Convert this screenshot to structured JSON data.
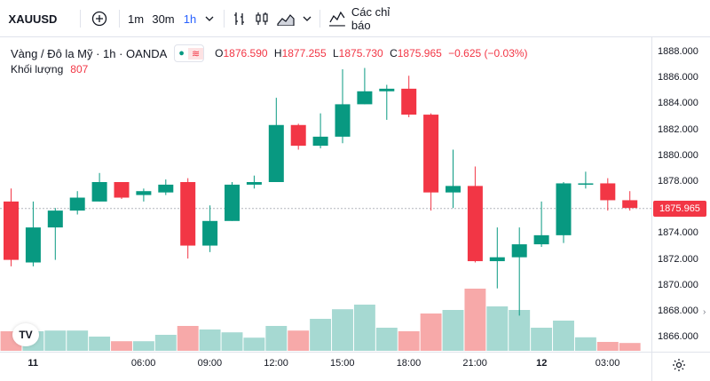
{
  "toolbar": {
    "symbol": "XAUUSD",
    "intervals": [
      "1m",
      "30m",
      "1h"
    ],
    "active_interval": "1h",
    "indicators_label": "Các chỉ báo",
    "icons": [
      "add-symbol-icon",
      "chevron-down-icon",
      "bar-style-icon",
      "candle-style-icon",
      "area-style-icon",
      "indicators-icon"
    ]
  },
  "legend": {
    "title": "Vàng / Đô la Mỹ · 1h · OANDA",
    "open_label": "O",
    "open": "1876.590",
    "high_label": "H",
    "high": "1877.255",
    "low_label": "L",
    "low": "1875.730",
    "close_label": "C",
    "close": "1875.965",
    "change": "−0.625 (−0.03%)",
    "volume_label": "Khối lượng",
    "volume": "807"
  },
  "price_axis": {
    "ticks": [
      "1888.000",
      "1886.000",
      "1884.000",
      "1882.000",
      "1880.000",
      "1878.000",
      "1876.000",
      "1874.000",
      "1872.000",
      "1870.000",
      "1868.000",
      "1866.000"
    ],
    "current_price": "1875.965"
  },
  "time_axis": {
    "ticks": [
      "11",
      "06:00",
      "09:00",
      "12:00",
      "15:00",
      "18:00",
      "21:00",
      "12",
      "03:00"
    ]
  },
  "colors": {
    "up": "#089981",
    "down": "#f23645",
    "vol_up": "#a6d9d2",
    "vol_down": "#f7a9a9",
    "accent": "#2962ff"
  },
  "chart_data": {
    "type": "candlestick",
    "ylim": [
      1865,
      1889.5
    ],
    "candles": [
      {
        "o": 1876.5,
        "h": 1877.5,
        "l": 1871.5,
        "c": 1872.0,
        "vol": 0.55
      },
      {
        "o": 1871.8,
        "h": 1876.5,
        "l": 1871.5,
        "c": 1874.5,
        "vol": 0.55
      },
      {
        "o": 1874.5,
        "h": 1876.0,
        "l": 1872.0,
        "c": 1875.8,
        "vol": 0.57
      },
      {
        "o": 1875.8,
        "h": 1877.3,
        "l": 1875.5,
        "c": 1876.8,
        "vol": 0.57
      },
      {
        "o": 1876.5,
        "h": 1878.7,
        "l": 1876.5,
        "c": 1878.0,
        "vol": 0.4
      },
      {
        "o": 1878.0,
        "h": 1878.0,
        "l": 1876.7,
        "c": 1876.8,
        "vol": 0.27
      },
      {
        "o": 1877.0,
        "h": 1877.5,
        "l": 1876.5,
        "c": 1877.3,
        "vol": 0.27
      },
      {
        "o": 1877.2,
        "h": 1878.2,
        "l": 1877.0,
        "c": 1877.8,
        "vol": 0.45
      },
      {
        "o": 1878.0,
        "h": 1878.3,
        "l": 1872.1,
        "c": 1873.1,
        "vol": 0.7
      },
      {
        "o": 1873.1,
        "h": 1876.2,
        "l": 1872.6,
        "c": 1875.0,
        "vol": 0.6
      },
      {
        "o": 1875.0,
        "h": 1878.0,
        "l": 1875.0,
        "c": 1877.8,
        "vol": 0.52
      },
      {
        "o": 1877.8,
        "h": 1878.5,
        "l": 1877.5,
        "c": 1878.0,
        "vol": 0.37
      },
      {
        "o": 1878.0,
        "h": 1884.5,
        "l": 1878.0,
        "c": 1882.4,
        "vol": 0.7
      },
      {
        "o": 1882.4,
        "h": 1882.5,
        "l": 1880.5,
        "c": 1880.8,
        "vol": 0.57
      },
      {
        "o": 1880.8,
        "h": 1883.3,
        "l": 1880.6,
        "c": 1881.5,
        "vol": 0.9
      },
      {
        "o": 1881.5,
        "h": 1886.7,
        "l": 1881.0,
        "c": 1884.0,
        "vol": 1.17
      },
      {
        "o": 1884.0,
        "h": 1886.8,
        "l": 1884.0,
        "c": 1885.0,
        "vol": 1.3
      },
      {
        "o": 1885.0,
        "h": 1885.5,
        "l": 1882.8,
        "c": 1885.2,
        "vol": 0.65
      },
      {
        "o": 1885.2,
        "h": 1886.2,
        "l": 1883.0,
        "c": 1883.2,
        "vol": 0.55
      },
      {
        "o": 1883.2,
        "h": 1883.3,
        "l": 1875.8,
        "c": 1877.2,
        "vol": 1.05
      },
      {
        "o": 1877.2,
        "h": 1880.5,
        "l": 1876.0,
        "c": 1877.7,
        "vol": 1.15
      },
      {
        "o": 1877.7,
        "h": 1879.2,
        "l": 1871.8,
        "c": 1871.9,
        "vol": 1.75
      },
      {
        "o": 1871.9,
        "h": 1874.5,
        "l": 1869.8,
        "c": 1872.2,
        "vol": 1.25
      },
      {
        "o": 1872.2,
        "h": 1874.5,
        "l": 1867.7,
        "c": 1873.2,
        "vol": 1.15
      },
      {
        "o": 1873.2,
        "h": 1876.5,
        "l": 1873.0,
        "c": 1873.9,
        "vol": 0.65
      },
      {
        "o": 1873.9,
        "h": 1878.0,
        "l": 1873.3,
        "c": 1877.9,
        "vol": 0.85
      },
      {
        "o": 1877.9,
        "h": 1878.8,
        "l": 1877.5,
        "c": 1877.9,
        "vol": 0.38
      },
      {
        "o": 1877.9,
        "h": 1878.3,
        "l": 1875.8,
        "c": 1876.6,
        "vol": 0.25
      },
      {
        "o": 1876.6,
        "h": 1877.3,
        "l": 1875.8,
        "c": 1876.0,
        "vol": 0.22
      }
    ]
  }
}
